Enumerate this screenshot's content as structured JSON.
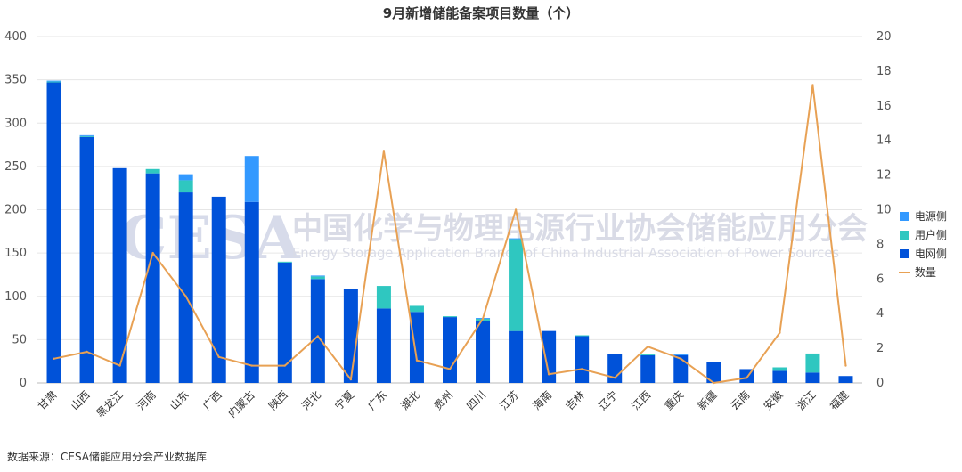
{
  "chart_data": {
    "type": "bar",
    "stacked": true,
    "title": "9月新增储能备案项目数量（个）",
    "categories": [
      "甘肃",
      "山西",
      "黑龙江",
      "河南",
      "山东",
      "广西",
      "内蒙古",
      "陕西",
      "河北",
      "宁夏",
      "广东",
      "湖北",
      "贵州",
      "四川",
      "江苏",
      "海南",
      "吉林",
      "辽宁",
      "江西",
      "重庆",
      "新疆",
      "云南",
      "安徽",
      "浙江",
      "福建"
    ],
    "series": [
      {
        "name": "电网侧",
        "color": "#0052d9",
        "type": "bar",
        "axis": "left",
        "values": [
          347,
          284,
          248,
          242,
          220,
          215,
          209,
          139,
          120,
          109,
          86,
          82,
          76,
          72,
          60,
          60,
          54,
          33,
          32,
          32,
          24,
          16,
          14,
          12,
          8
        ]
      },
      {
        "name": "用户侧",
        "color": "#2fc7c0",
        "type": "bar",
        "axis": "left",
        "values": [
          1,
          1,
          0,
          5,
          14,
          0,
          0,
          1,
          3,
          0,
          26,
          7,
          1,
          2,
          106,
          0,
          1,
          0,
          1,
          0,
          0,
          0,
          4,
          22,
          0
        ]
      },
      {
        "name": "电源侧",
        "color": "#3399ff",
        "type": "bar",
        "axis": "left",
        "values": [
          1,
          1,
          0,
          0,
          7,
          0,
          53,
          0,
          1,
          0,
          0,
          0,
          0,
          1,
          1,
          0,
          0,
          0,
          0,
          1,
          0,
          0,
          0,
          0,
          0
        ]
      },
      {
        "name": "数量",
        "color": "#e8a154",
        "type": "line",
        "axis": "right",
        "values": [
          1.4,
          1.8,
          1.0,
          7.5,
          5.0,
          1.5,
          1.0,
          1.0,
          2.7,
          0.2,
          13.4,
          1.3,
          0.8,
          3.7,
          10.0,
          0.5,
          0.8,
          0.3,
          2.1,
          1.4,
          0.0,
          0.3,
          2.9,
          17.2,
          1.0
        ]
      }
    ],
    "ylim": [
      0,
      400
    ],
    "y_ticks": [
      0,
      50,
      100,
      150,
      200,
      250,
      300,
      350,
      400
    ],
    "y2lim": [
      0,
      20
    ],
    "y2_ticks": [
      0,
      2,
      4,
      6,
      8,
      10,
      12,
      14,
      16,
      18,
      20
    ],
    "grid": true,
    "legend_position": "right"
  },
  "watermark": {
    "logo": "CESA",
    "cn": "中国化学与物理电源行业协会储能应用分会",
    "en": "Energy Storage Application Branch of China Industrial Association of Power Sources"
  },
  "source_text": "数据来源：CESA储能应用分会产业数据库"
}
